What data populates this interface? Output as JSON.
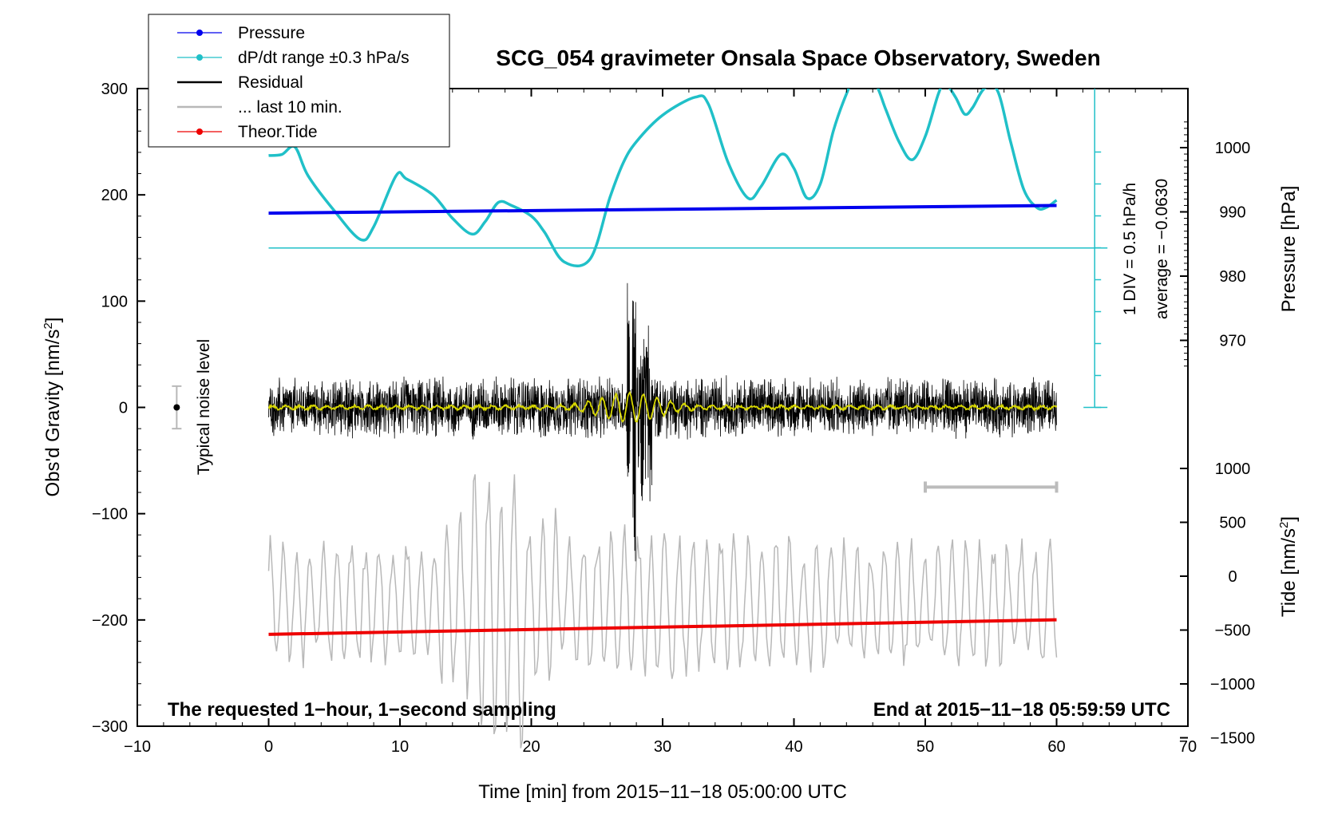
{
  "chart_data": {
    "type": "line",
    "title": "SCG_054 gravimeter Onsala Space Observatory, Sweden",
    "xlabel": "Time [min] from 2015−11−18 05:00:00 UTC",
    "xlim": [
      -10,
      70
    ],
    "x_ticks": [
      "−10",
      "0",
      "10",
      "20",
      "30",
      "40",
      "50",
      "60",
      "70"
    ],
    "left_axis": {
      "label": "Obs'd Gravity [nm/s",
      "label_sup": "2",
      "label_end": "]",
      "ylim": [
        -300,
        300
      ],
      "ticks": [
        "−300",
        "−200",
        "−100",
        "0",
        "100",
        "200",
        "300"
      ]
    },
    "pressure_axis": {
      "label": "Pressure [hPa]",
      "range": [
        965,
        1005
      ],
      "ticks": [
        "970",
        "980",
        "990",
        "1000"
      ]
    },
    "tide_axis": {
      "label": "Tide [nm/s",
      "label_sup": "2",
      "label_end": "]",
      "range": [
        -1500,
        1000
      ],
      "ticks": [
        "−1500",
        "−1000",
        "−500",
        "0",
        "500",
        "1000"
      ]
    },
    "legend": {
      "placement": "top-left",
      "entries": [
        {
          "label": "Pressure",
          "color": "#0000ee",
          "marker": true
        },
        {
          "label": "dP/dt range ±0.3 hPa/s",
          "color": "#20c0c8",
          "marker": true
        },
        {
          "label": "Residual",
          "color": "#000000",
          "marker": false
        },
        {
          "label": "... last 10 min.",
          "color": "#b8b8b8",
          "marker": false
        },
        {
          "label": "Theor.Tide",
          "color": "#ee0000",
          "marker": true
        }
      ]
    },
    "annotations": {
      "noise_label": "Typical noise level",
      "div_label": "1 DIV = 0.5 hPa/h",
      "average_label": "average = −0.0630",
      "footer_left": "The requested 1−hour, 1−second sampling",
      "footer_right": "End at 2015−11−18 05:59:59 UTC"
    },
    "series": [
      {
        "name": "Pressure",
        "color": "#0000ee",
        "axis": "pressure",
        "x": [
          0,
          60
        ],
        "values": [
          989.8,
          991.0
        ]
      },
      {
        "name": "Theor.Tide",
        "color": "#ee0000",
        "axis": "tide",
        "x": [
          0,
          60
        ],
        "values": [
          -540,
          -405
        ]
      },
      {
        "name": "dP/dt",
        "color": "#20c0c8",
        "axis": "gravity_display",
        "x": [
          0,
          1,
          2,
          3,
          5,
          7,
          8,
          9.7,
          10.5,
          12.5,
          14,
          15.5,
          16.5,
          17.5,
          18.5,
          20,
          21,
          22.5,
          24.5,
          26,
          27,
          28,
          30,
          32.5,
          33.5,
          35,
          36.5,
          37.5,
          39,
          40,
          41,
          42,
          43,
          44,
          45,
          46.2,
          47,
          48,
          49,
          50,
          51,
          51.5,
          52.3,
          53,
          53.6,
          54.5,
          55.5,
          56.5,
          57.5,
          58.5,
          59.2,
          60
        ],
        "values": [
          237,
          238,
          245,
          218,
          185,
          158,
          170,
          218,
          215,
          200,
          178,
          163,
          175,
          193,
          190,
          180,
          165,
          137,
          140,
          198,
          230,
          250,
          275,
          292,
          285,
          230,
          197,
          208,
          238,
          225,
          197,
          210,
          260,
          295,
          320,
          305,
          280,
          250,
          233,
          255,
          295,
          305,
          292,
          276,
          282,
          300,
          298,
          250,
          205,
          188,
          188,
          195
        ]
      },
      {
        "name": "Residual",
        "color": "#000000",
        "axis": "gravity",
        "x": [
          0,
          60
        ],
        "envelope": [
          [
            0,
            30
          ],
          [
            27.4,
            125
          ],
          [
            27.8,
            -145
          ],
          [
            28.2,
            90
          ],
          [
            29,
            -60
          ],
          [
            30,
            40
          ],
          [
            60,
            30
          ]
        ]
      },
      {
        "name": "Residual filtered",
        "color": "#d8d800",
        "axis": "gravity",
        "x": [
          0,
          60
        ],
        "values": [
          0,
          0
        ]
      },
      {
        "name": "... last 10 min.",
        "color": "#b8b8b8",
        "axis": "gravity_display",
        "x": [
          0,
          60
        ],
        "baseline": -185,
        "range": [
          -300,
          -40
        ]
      }
    ],
    "reference": {
      "dpdt_zero_level": 150,
      "noise_half_width": 20,
      "noise_x": -7,
      "scale_bar_x": [
        50,
        60
      ],
      "scale_bar_y": -75,
      "div_axis_range": [
        0,
        300
      ],
      "div_axis_x": 62.9
    }
  }
}
